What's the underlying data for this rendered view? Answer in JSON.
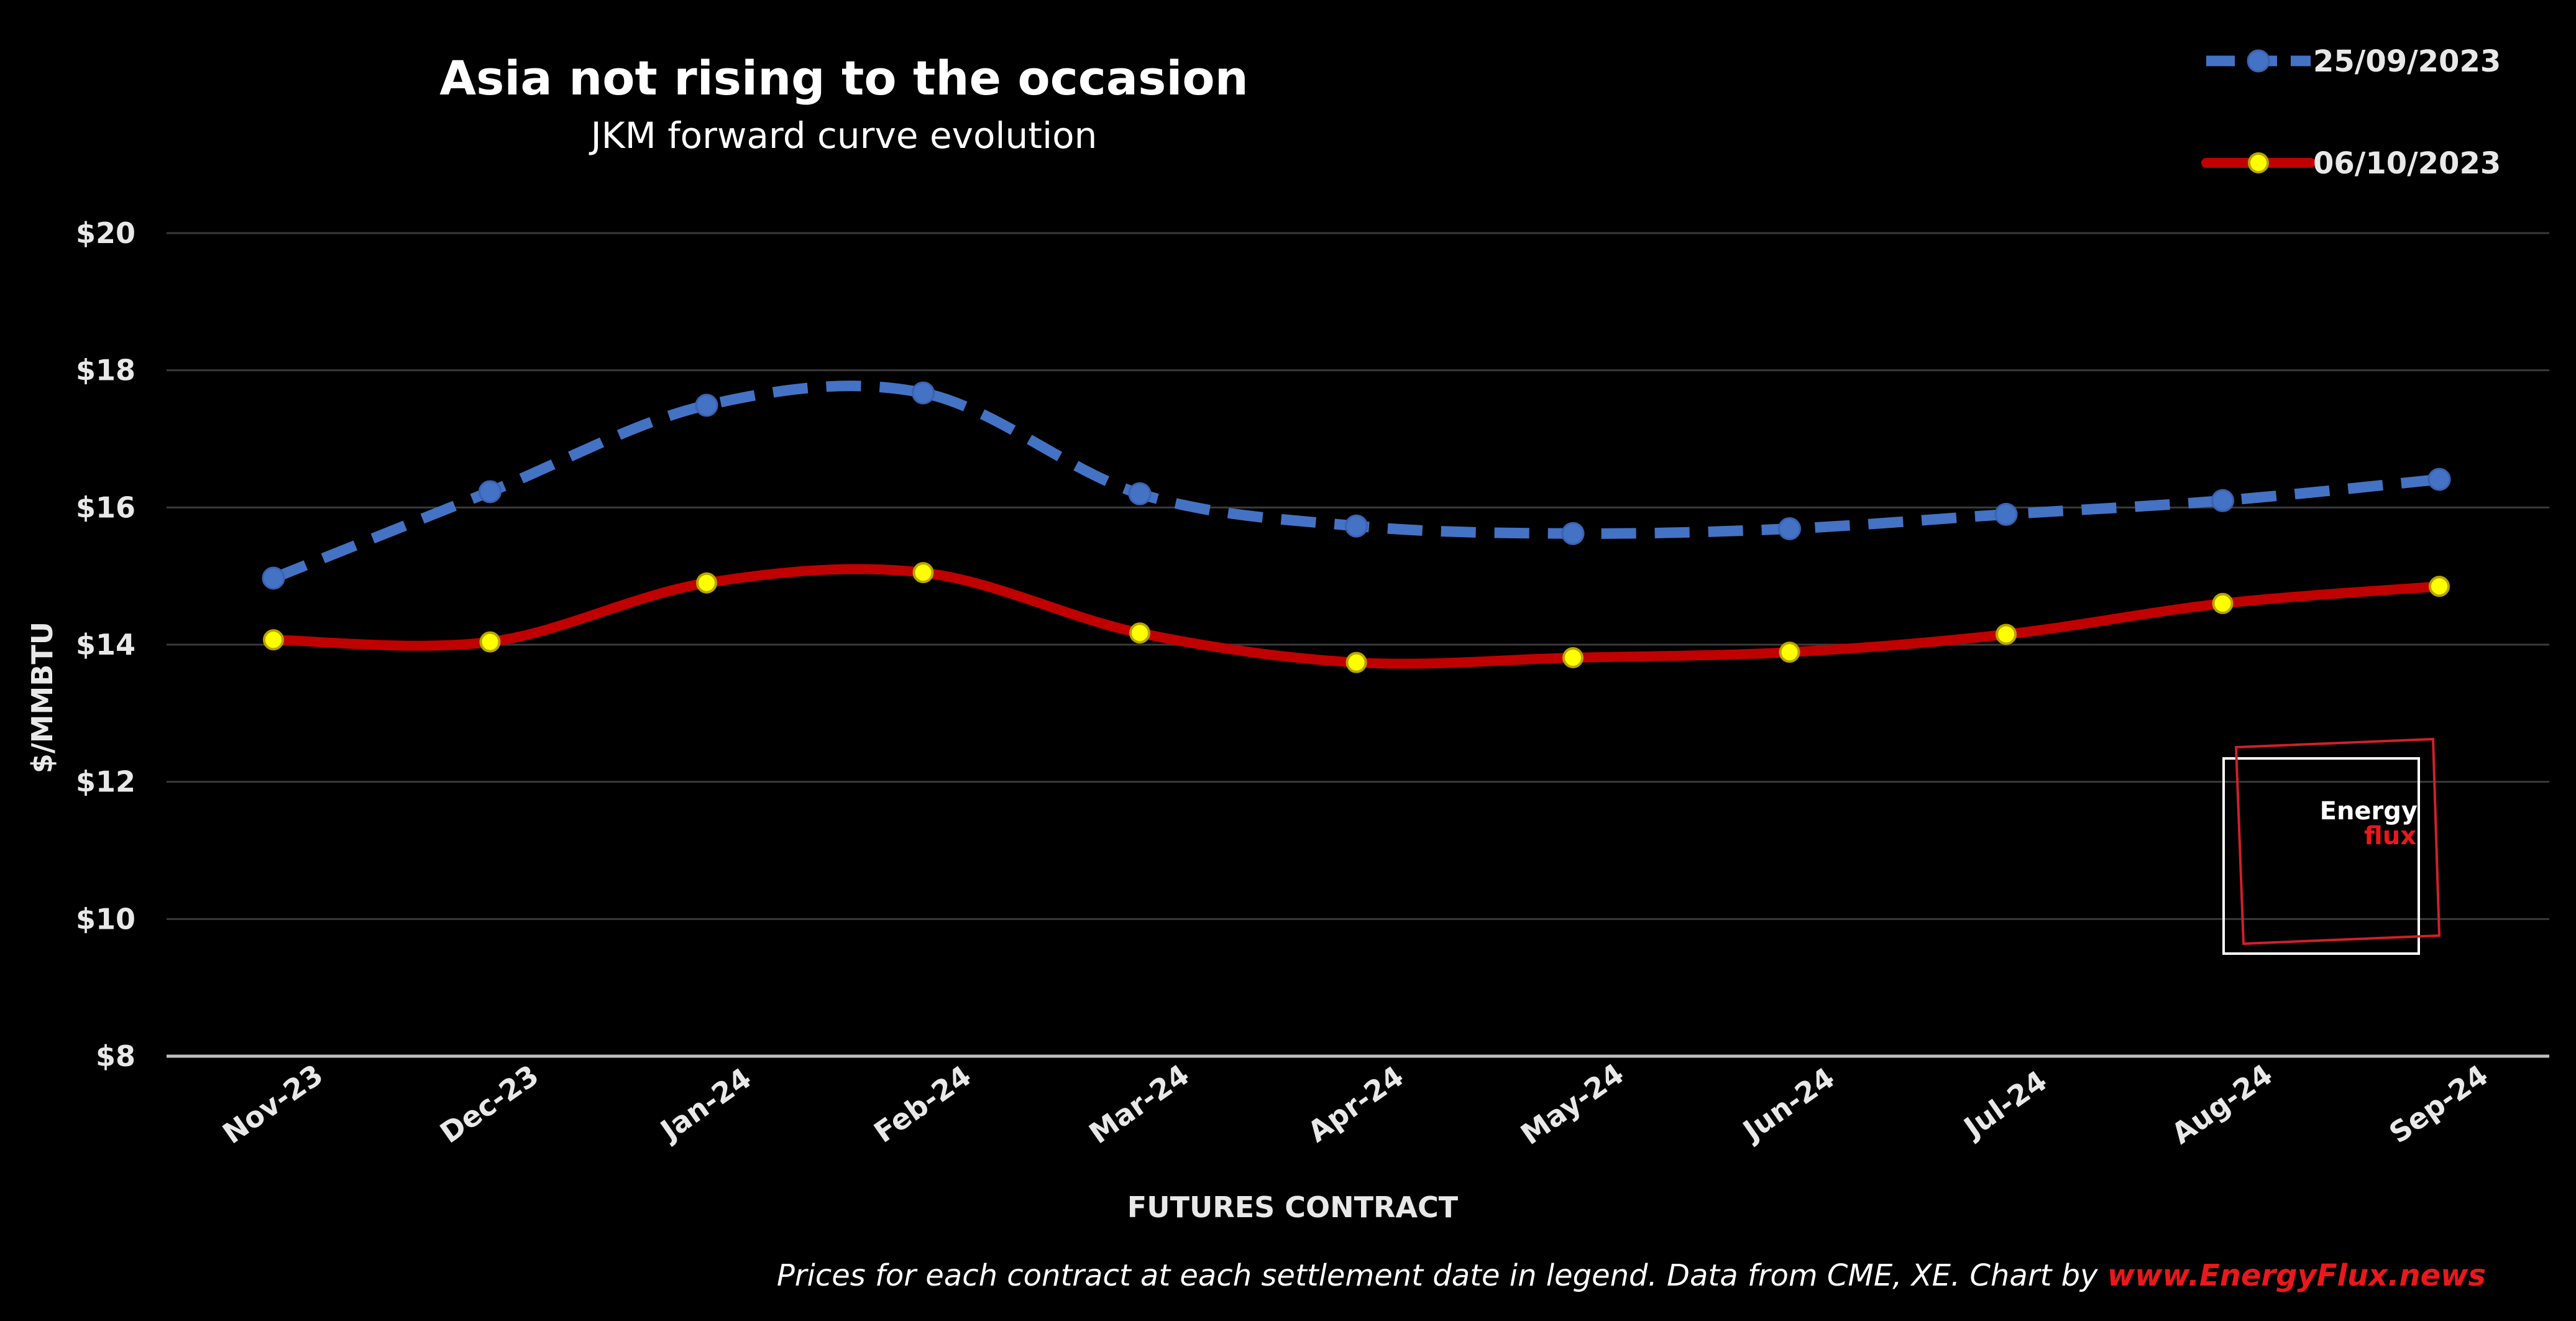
{
  "chart_data": {
    "type": "line",
    "title": "Asia not rising to the occasion",
    "subtitle": "JKM forward curve evolution",
    "xlabel": "FUTURES CONTRACT",
    "ylabel": "$/MMBTU",
    "ylim": [
      8,
      20
    ],
    "y_ticks": [
      "$8",
      "$10",
      "$12",
      "$14",
      "$16",
      "$18",
      "$20"
    ],
    "y_tick_values": [
      8,
      10,
      12,
      14,
      16,
      18,
      20
    ],
    "grid": "horizontal",
    "legend_position": "top-right",
    "categories": [
      "Nov-23",
      "Dec-23",
      "Jan-24",
      "Feb-24",
      "Mar-24",
      "Apr-24",
      "May-24",
      "Jun-24",
      "Jul-24",
      "Aug-24",
      "Sep-24"
    ],
    "series": [
      {
        "name": "25/09/2023",
        "color": "#4472c4",
        "style": "dashed",
        "marker": "circle-blue",
        "values": [
          14.97,
          16.23,
          17.49,
          17.67,
          16.2,
          15.73,
          15.62,
          15.69,
          15.9,
          16.1,
          16.41
        ]
      },
      {
        "name": "06/10/2023",
        "color": "#c00000",
        "style": "solid",
        "marker": "circle-yellow",
        "values": [
          14.07,
          14.04,
          14.9,
          15.05,
          14.17,
          13.74,
          13.81,
          13.89,
          14.15,
          14.6,
          14.85
        ]
      }
    ]
  },
  "footnote": {
    "text": "Prices for each contract at each settlement date in legend. Data from CME, XE. Chart by ",
    "link": "www.EnergyFlux.news"
  },
  "logo": {
    "line1": "Energy",
    "line2": "flux"
  }
}
